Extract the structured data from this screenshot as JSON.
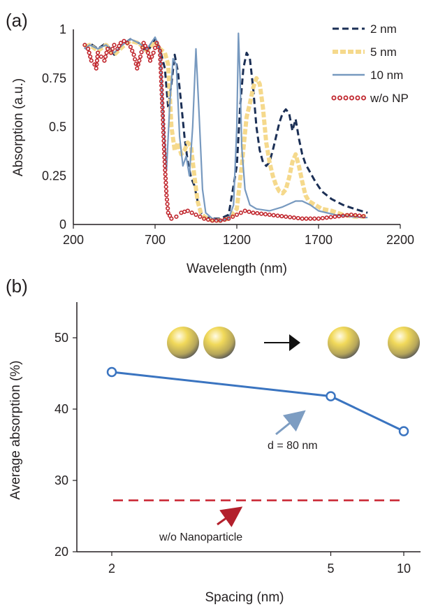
{
  "colors": {
    "series_2nm": "#1b2f55",
    "series_5nm": "#f5d98c",
    "series_10nm": "#7799bf",
    "series_woNP": "#c0262d",
    "avg_line": "#3a74c0",
    "baseline": "#c8202e",
    "arrow_blue": "#7d9dc2",
    "arrow_red": "#b3202c"
  },
  "chart_data": [
    {
      "panel_label": "(a)",
      "type": "line",
      "xlabel": "Wavelength (nm)",
      "ylabel": "Absorption (a.u.)",
      "xlim": [
        200,
        2200
      ],
      "ylim": [
        0,
        1
      ],
      "x_ticks": [
        "200",
        "700",
        "1200",
        "1700",
        "2200"
      ],
      "y_ticks": [
        "0",
        "0.25",
        "0.5",
        "0.75",
        "1"
      ],
      "legend_position": "top-right",
      "series": [
        {
          "name": "2 nm",
          "style": "dashed",
          "x": [
            270,
            300,
            350,
            400,
            450,
            500,
            550,
            600,
            650,
            700,
            730,
            760,
            780,
            800,
            820,
            840,
            860,
            880,
            900,
            920,
            940,
            960,
            980,
            1000,
            1050,
            1100,
            1150,
            1200,
            1220,
            1240,
            1260,
            1280,
            1300,
            1320,
            1340,
            1360,
            1380,
            1400,
            1420,
            1440,
            1460,
            1480,
            1500,
            1520,
            1540,
            1560,
            1580,
            1600,
            1620,
            1640,
            1680,
            1720,
            1780,
            1850,
            1920,
            2000
          ],
          "y": [
            0.9,
            0.93,
            0.9,
            0.93,
            0.87,
            0.92,
            0.95,
            0.93,
            0.88,
            0.95,
            0.9,
            0.8,
            0.6,
            0.72,
            0.87,
            0.78,
            0.62,
            0.45,
            0.32,
            0.24,
            0.2,
            0.12,
            0.06,
            0.04,
            0.03,
            0.03,
            0.05,
            0.3,
            0.6,
            0.8,
            0.88,
            0.85,
            0.7,
            0.5,
            0.38,
            0.32,
            0.3,
            0.32,
            0.38,
            0.45,
            0.52,
            0.57,
            0.59,
            0.57,
            0.48,
            0.54,
            0.44,
            0.36,
            0.31,
            0.28,
            0.22,
            0.17,
            0.13,
            0.1,
            0.08,
            0.06
          ]
        },
        {
          "name": "5 nm",
          "style": "thick-dashed",
          "x": [
            270,
            300,
            350,
            400,
            450,
            500,
            550,
            600,
            650,
            700,
            730,
            760,
            780,
            800,
            820,
            840,
            860,
            880,
            900,
            920,
            940,
            960,
            980,
            1000,
            1050,
            1100,
            1150,
            1200,
            1230,
            1260,
            1280,
            1300,
            1320,
            1340,
            1360,
            1380,
            1400,
            1420,
            1440,
            1460,
            1480,
            1500,
            1520,
            1540,
            1560,
            1580,
            1600,
            1620,
            1640,
            1680,
            1720,
            1780,
            1850,
            1920,
            2000
          ],
          "y": [
            0.91,
            0.92,
            0.89,
            0.92,
            0.87,
            0.91,
            0.94,
            0.93,
            0.89,
            0.94,
            0.9,
            0.88,
            0.82,
            0.5,
            0.38,
            0.42,
            0.36,
            0.38,
            0.42,
            0.4,
            0.25,
            0.12,
            0.06,
            0.04,
            0.02,
            0.02,
            0.03,
            0.08,
            0.3,
            0.55,
            0.62,
            0.7,
            0.75,
            0.72,
            0.6,
            0.42,
            0.32,
            0.25,
            0.2,
            0.17,
            0.16,
            0.18,
            0.24,
            0.32,
            0.36,
            0.3,
            0.22,
            0.15,
            0.12,
            0.1,
            0.08,
            0.07,
            0.05,
            0.04,
            0.04
          ]
        },
        {
          "name": "10 nm",
          "style": "solid",
          "x": [
            270,
            300,
            350,
            400,
            450,
            500,
            550,
            600,
            650,
            700,
            730,
            750,
            770,
            790,
            810,
            830,
            850,
            870,
            890,
            910,
            930,
            950,
            970,
            990,
            1010,
            1050,
            1100,
            1150,
            1180,
            1200,
            1210,
            1220,
            1230,
            1250,
            1280,
            1320,
            1400,
            1480,
            1560,
            1600,
            1650,
            1700,
            1800,
            1900,
            2000
          ],
          "y": [
            0.9,
            0.92,
            0.9,
            0.92,
            0.88,
            0.92,
            0.95,
            0.93,
            0.9,
            0.96,
            0.9,
            0.55,
            0.28,
            0.62,
            0.85,
            0.82,
            0.45,
            0.3,
            0.35,
            0.25,
            0.5,
            0.9,
            0.55,
            0.18,
            0.06,
            0.03,
            0.02,
            0.03,
            0.1,
            0.5,
            0.98,
            0.75,
            0.4,
            0.18,
            0.1,
            0.08,
            0.07,
            0.09,
            0.12,
            0.12,
            0.1,
            0.07,
            0.05,
            0.04,
            0.035
          ]
        },
        {
          "name": "w/o NP",
          "style": "circles",
          "x": [
            270,
            290,
            310,
            330,
            340,
            350,
            370,
            390,
            410,
            430,
            450,
            470,
            490,
            510,
            530,
            550,
            570,
            590,
            610,
            630,
            650,
            670,
            690,
            710,
            730,
            745,
            760,
            770,
            780,
            800,
            830,
            860,
            900,
            950,
            1000,
            1050,
            1100,
            1150,
            1200,
            1250,
            1300,
            1400,
            1500,
            1600,
            1700,
            1800,
            1900,
            2000
          ],
          "y": [
            0.92,
            0.9,
            0.84,
            0.82,
            0.8,
            0.88,
            0.86,
            0.84,
            0.9,
            0.88,
            0.92,
            0.9,
            0.93,
            0.94,
            0.93,
            0.91,
            0.87,
            0.8,
            0.86,
            0.93,
            0.9,
            0.84,
            0.88,
            0.93,
            0.89,
            0.6,
            0.3,
            0.15,
            0.06,
            0.03,
            0.04,
            0.06,
            0.07,
            0.05,
            0.03,
            0.02,
            0.02,
            0.03,
            0.05,
            0.07,
            0.06,
            0.05,
            0.04,
            0.03,
            0.03,
            0.04,
            0.05,
            0.04
          ]
        }
      ]
    },
    {
      "panel_label": "(b)",
      "type": "line",
      "xlabel": "Spacing (nm)",
      "ylabel": "Average absorption (%)",
      "x_ticks": [
        "2",
        "5",
        "10"
      ],
      "y_ticks": [
        "20",
        "30",
        "40",
        "50"
      ],
      "ylim": [
        20,
        55
      ],
      "series": [
        {
          "name": "d = 80 nm",
          "x": [
            2,
            5,
            10
          ],
          "y": [
            45.2,
            41.8,
            36.9
          ]
        }
      ],
      "baseline": {
        "label": "w/o Nanoparticle",
        "y": 27.2
      }
    }
  ]
}
